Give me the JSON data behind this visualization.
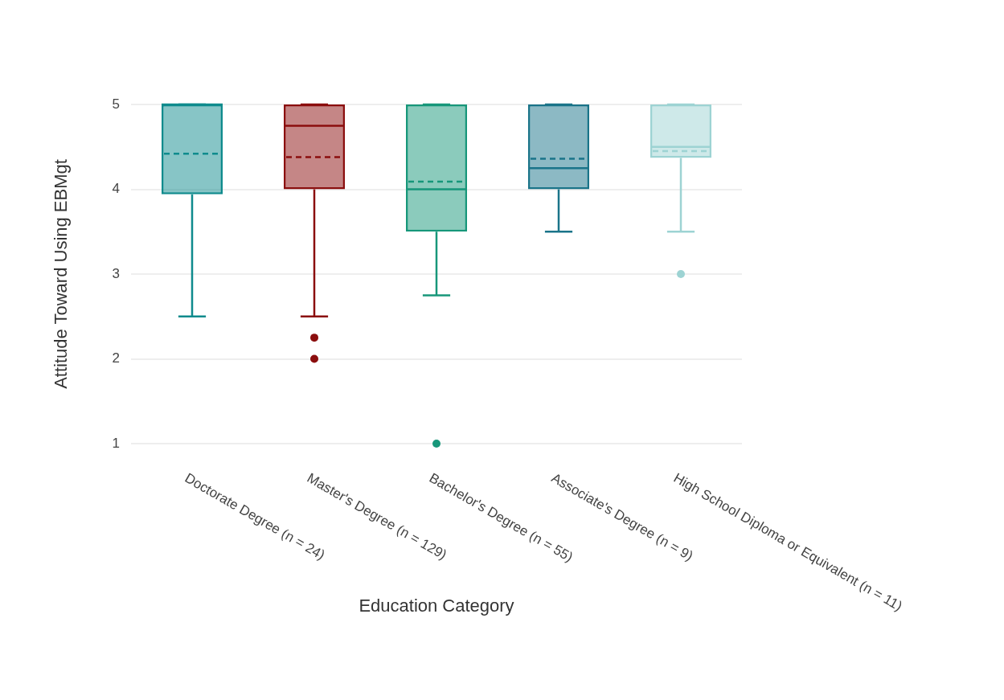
{
  "chart_data": {
    "type": "box",
    "xlabel": "Education Category",
    "ylabel": "Attitude Toward Using EBMgt",
    "categories": [
      "Doctorate Degree (n = 24)",
      "Master's Degree (n = 129)",
      "Bachelor's Degree (n = 55)",
      "Associate's Degree (n = 9)",
      "High School Diploma or Equivalent (n = 11)"
    ],
    "colors": [
      "#0f8b8d",
      "#8b0e0e",
      "#17977a",
      "#1a7489",
      "#9dd3d3"
    ],
    "boxes": [
      {
        "low": 2.5,
        "q1": 3.94,
        "median": 5,
        "q3": 5,
        "high": 5,
        "mean": 4.42
      },
      {
        "low": 2.5,
        "q1": 4,
        "median": 4.75,
        "q3": 5,
        "high": 5,
        "mean": 4.38,
        "outliers": [
          2.25,
          2
        ]
      },
      {
        "low": 2.75,
        "q1": 3.5,
        "median": 4,
        "q3": 5,
        "high": 5,
        "mean": 4.09,
        "outliers": [
          1
        ]
      },
      {
        "low": 3.5,
        "q1": 4,
        "median": 4.25,
        "q3": 5,
        "high": 5,
        "mean": 4.36
      },
      {
        "low": 3.5,
        "q1": 4.37,
        "median": 4.5,
        "q3": 5,
        "high": 5,
        "mean": 4.45,
        "outliers": [
          3
        ]
      }
    ],
    "ylim": [
      1,
      5
    ],
    "yticks": [
      1,
      2,
      3,
      4,
      5
    ],
    "grid": "y",
    "legend": false
  }
}
